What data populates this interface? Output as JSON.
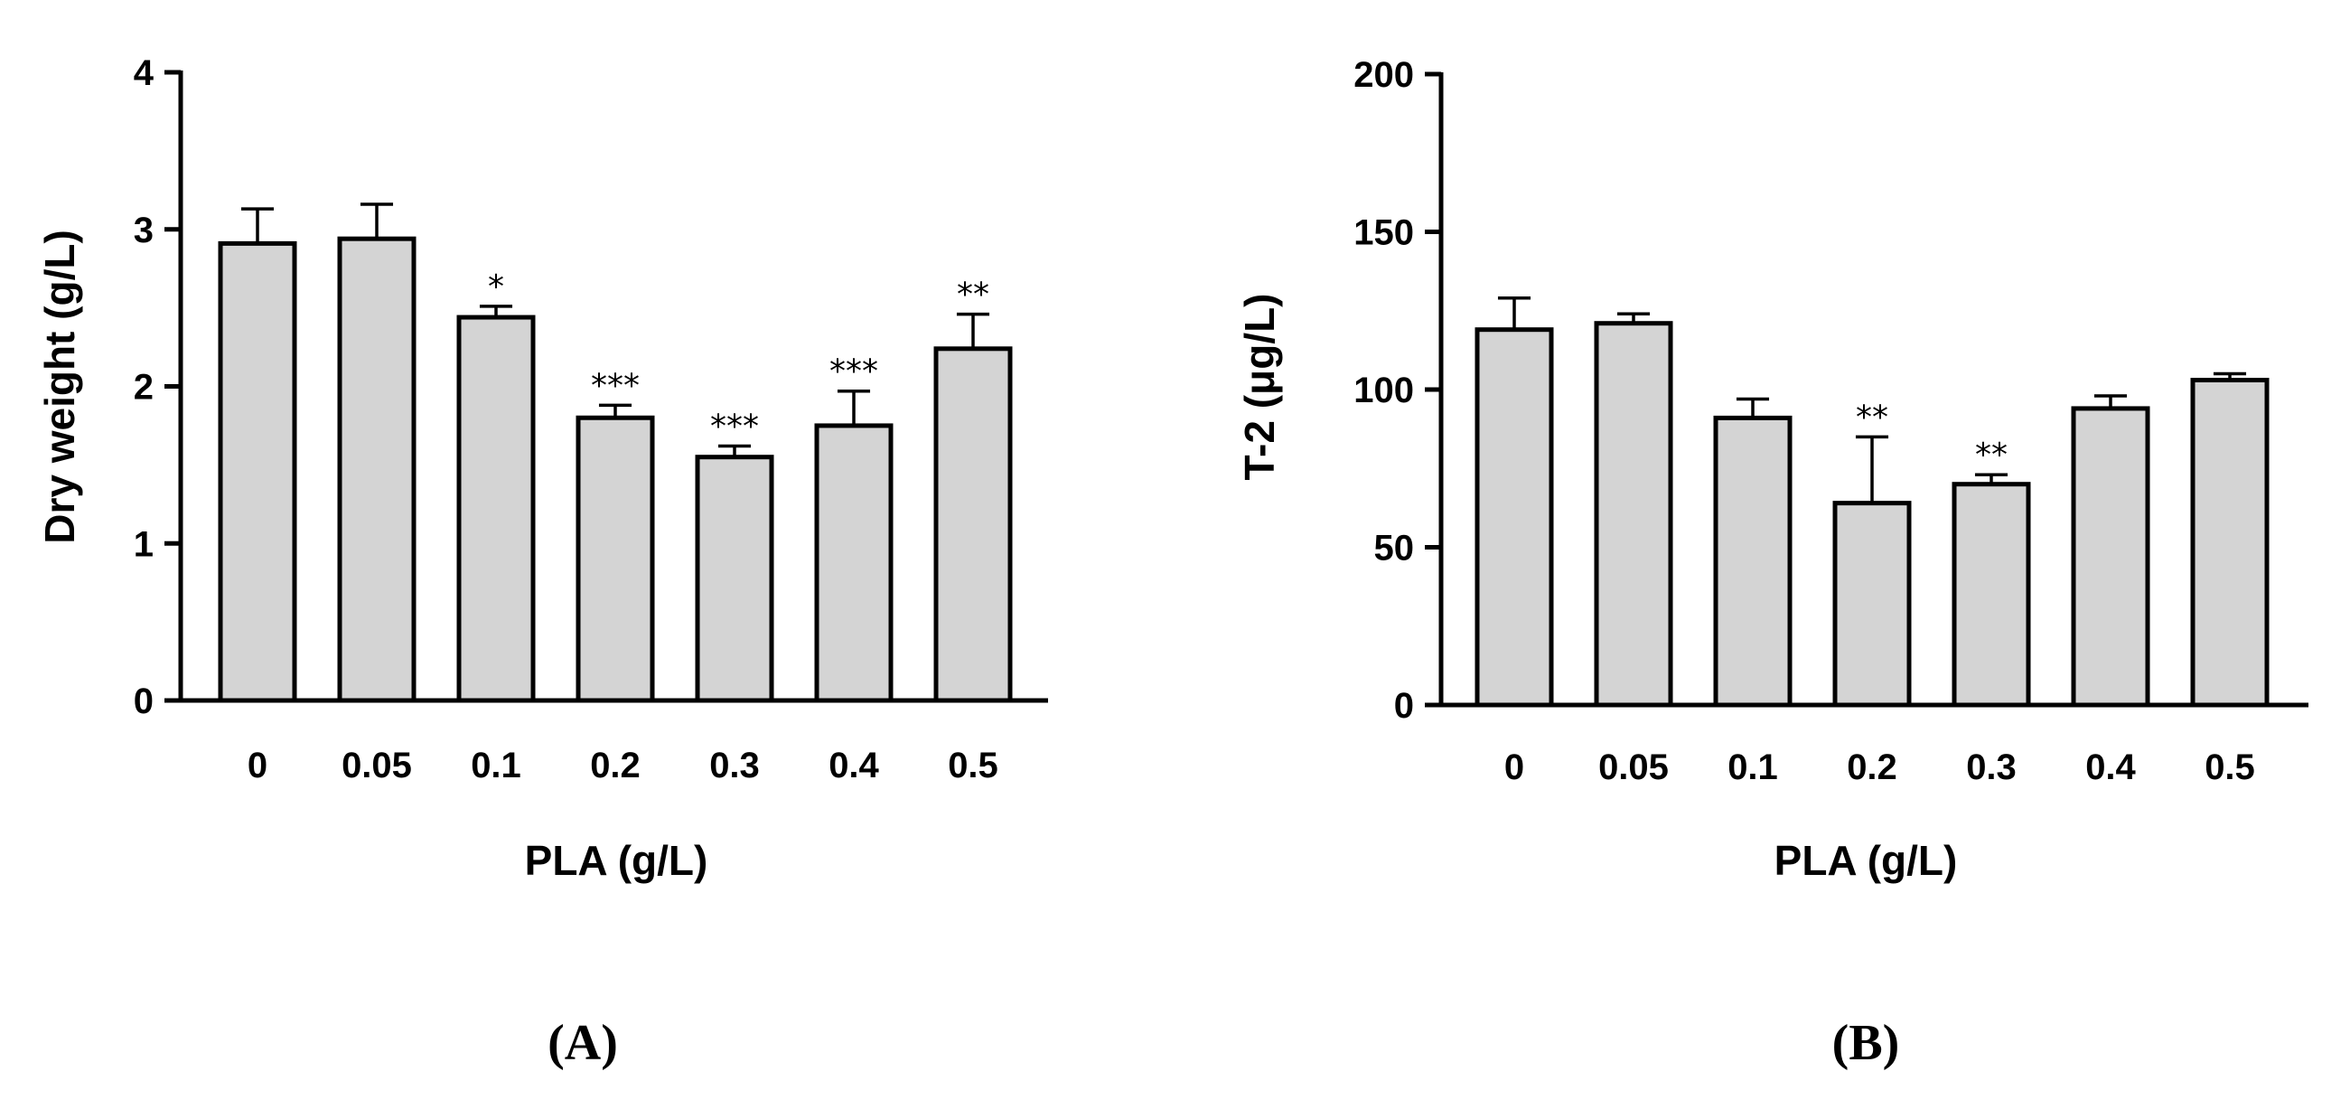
{
  "chart_data": [
    {
      "type": "bar",
      "panel_label": "(A)",
      "categories": [
        "0",
        "0.05",
        "0.1",
        "0.2",
        "0.3",
        "0.4",
        "0.5"
      ],
      "values": [
        2.91,
        2.94,
        2.44,
        1.8,
        1.55,
        1.75,
        2.24
      ],
      "errors": [
        0.22,
        0.22,
        0.07,
        0.08,
        0.07,
        0.22,
        0.22
      ],
      "significance": [
        "",
        "",
        "*",
        "***",
        "***",
        "***",
        "**"
      ],
      "xlabel": "PLA (g/L)",
      "ylabel": "Dry weight (g/L)",
      "ylim": [
        0,
        4
      ],
      "yticks": [
        0,
        1,
        2,
        3,
        4
      ],
      "grid": false
    },
    {
      "type": "bar",
      "panel_label": "(B)",
      "categories": [
        "0",
        "0.05",
        "0.1",
        "0.2",
        "0.3",
        "0.4",
        "0.5"
      ],
      "values": [
        119,
        121,
        91,
        64,
        70,
        94,
        103
      ],
      "errors": [
        10,
        3,
        6,
        21,
        3,
        4,
        2
      ],
      "significance": [
        "",
        "",
        "",
        "**",
        "**",
        "",
        ""
      ],
      "xlabel": "PLA (g/L)",
      "ylabel": "T-2 (μg/L)",
      "ylim": [
        0,
        200
      ],
      "yticks": [
        0,
        50,
        100,
        150,
        200
      ],
      "grid": false
    }
  ]
}
